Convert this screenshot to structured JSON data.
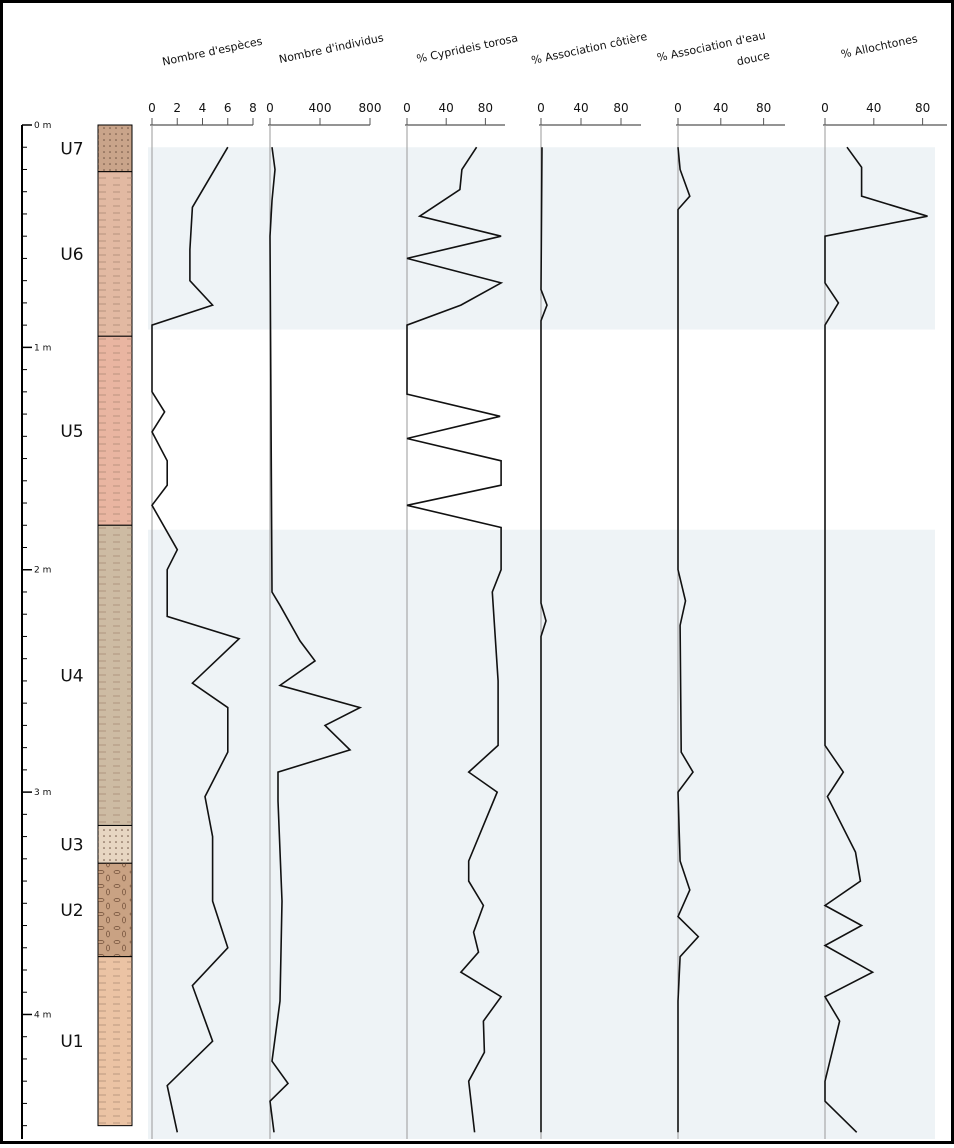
{
  "depth_axis": {
    "ylim": [
      0,
      4.56
    ],
    "yticks": [
      {
        "value": 0,
        "label": "0 m"
      },
      {
        "value": 1,
        "label": "1 m"
      },
      {
        "value": 2,
        "label": "2 m"
      },
      {
        "value": 3,
        "label": "3 m"
      },
      {
        "value": 4,
        "label": "4 m"
      }
    ],
    "shaded_intervals": [
      [
        0.1,
        0.92
      ],
      [
        1.82,
        4.56
      ]
    ],
    "units": [
      {
        "label": "U7",
        "top": 0,
        "bottom": 0.21,
        "color": "#c9a48a"
      },
      {
        "label": "U6",
        "top": 0.21,
        "bottom": 0.95,
        "color": "#e2b9a2"
      },
      {
        "label": "U5",
        "top": 0.95,
        "bottom": 1.8,
        "color": "#e9b5a1"
      },
      {
        "label": "U4",
        "top": 1.8,
        "bottom": 3.15,
        "color": "#cdbba3"
      },
      {
        "label": "U3",
        "top": 3.15,
        "bottom": 3.32,
        "color": "#e7d6c2"
      },
      {
        "label": "U2",
        "top": 3.32,
        "bottom": 3.74,
        "color": "#c9a283"
      },
      {
        "label": "U1",
        "top": 3.74,
        "bottom": 4.5,
        "color": "#ebc3a4"
      }
    ]
  },
  "chart_data": [
    {
      "type": "line",
      "title": "Nombre d'espèces",
      "xlim": [
        0,
        8
      ],
      "xticks": [
        0,
        2,
        4,
        6,
        8
      ],
      "color": "#111111",
      "depth": [
        0.1,
        0.37,
        0.56,
        0.7,
        0.81,
        0.9,
        1.2,
        1.29,
        1.38,
        1.51,
        1.62,
        1.71,
        1.91,
        2.0,
        2.21,
        2.31,
        2.51,
        2.62,
        2.82,
        3.02,
        3.2,
        3.49,
        3.7,
        3.87,
        4.12,
        4.32,
        4.53
      ],
      "values": [
        6,
        3.2,
        3,
        3,
        4.8,
        0,
        0,
        1,
        0,
        1.2,
        1.2,
        0,
        2,
        1.2,
        1.2,
        6.9,
        3.2,
        6,
        6,
        4.2,
        4.8,
        4.8,
        6,
        3.2,
        4.8,
        1.2,
        2
      ]
    },
    {
      "type": "line",
      "title": "Nombre d'individus",
      "xlim": [
        0,
        800
      ],
      "xticks": [
        0,
        400,
        800
      ],
      "color": "#111111",
      "depth": [
        0.1,
        0.2,
        0.34,
        0.5,
        2.1,
        2.16,
        2.32,
        2.41,
        2.52,
        2.62,
        2.7,
        2.81,
        2.91,
        3.04,
        3.49,
        3.94,
        4.21,
        4.31,
        4.39,
        4.53
      ],
      "values": [
        16,
        40,
        16,
        0,
        16,
        80,
        240,
        360,
        80,
        720,
        440,
        640,
        64,
        64,
        96,
        80,
        16,
        144,
        0,
        32
      ]
    },
    {
      "type": "line",
      "title": "% Cyprideis torosa",
      "xlim": [
        0,
        100
      ],
      "xticks": [
        0,
        40,
        80
      ],
      "color": "#111111",
      "depth": [
        0.1,
        0.2,
        0.29,
        0.41,
        0.5,
        0.6,
        0.71,
        0.81,
        0.9,
        1.21,
        1.31,
        1.41,
        1.51,
        1.62,
        1.71,
        1.81,
        2.0,
        2.1,
        2.5,
        2.79,
        2.91,
        3.0,
        3.31,
        3.4,
        3.51,
        3.63,
        3.72,
        3.81,
        3.92,
        4.03,
        4.17,
        4.3,
        4.53
      ],
      "values": [
        71,
        56,
        54,
        13,
        96,
        0,
        96,
        55,
        0,
        0,
        95,
        0,
        96,
        96,
        0,
        96,
        96,
        87,
        93,
        93,
        63,
        92,
        63,
        63,
        78,
        68,
        73,
        55,
        96,
        78,
        79,
        63,
        69
      ]
    },
    {
      "type": "line",
      "title": "% Association côtière",
      "xlim": [
        0,
        100
      ],
      "xticks": [
        0,
        40,
        80
      ],
      "color": "#111111",
      "depth": [
        0.1,
        0.74,
        0.81,
        0.88,
        2.15,
        2.23,
        2.3,
        4.53
      ],
      "values": [
        1,
        0,
        6,
        0,
        0,
        5,
        0,
        0
      ]
    },
    {
      "type": "line",
      "title": [
        "% Association d'eau",
        "douce"
      ],
      "xlim": [
        0,
        100
      ],
      "xticks": [
        0,
        40,
        80
      ],
      "color": "#111111",
      "depth": [
        0.1,
        0.2,
        0.32,
        0.38,
        2.0,
        2.14,
        2.25,
        2.82,
        2.91,
        3.0,
        3.31,
        3.44,
        3.56,
        3.65,
        3.74,
        3.94,
        4.53
      ],
      "values": [
        0,
        2,
        11,
        0,
        0,
        7,
        2,
        3,
        14,
        0,
        2,
        11,
        0,
        19,
        2,
        0,
        0
      ]
    },
    {
      "type": "line",
      "title": "% Allochtones",
      "xlim": [
        0,
        100
      ],
      "xticks": [
        0,
        40,
        80
      ],
      "color": "#111111",
      "depth": [
        0.1,
        0.19,
        0.32,
        0.41,
        0.5,
        0.71,
        0.8,
        0.9,
        2.79,
        2.91,
        3.02,
        3.27,
        3.4,
        3.51,
        3.6,
        3.69,
        3.81,
        3.92,
        4.03,
        4.3,
        4.39,
        4.53
      ],
      "values": [
        18,
        30,
        30,
        84,
        0,
        0,
        11,
        0,
        0,
        15,
        2,
        25,
        29,
        0,
        30,
        0,
        39,
        0,
        12,
        0,
        0,
        26
      ]
    }
  ]
}
